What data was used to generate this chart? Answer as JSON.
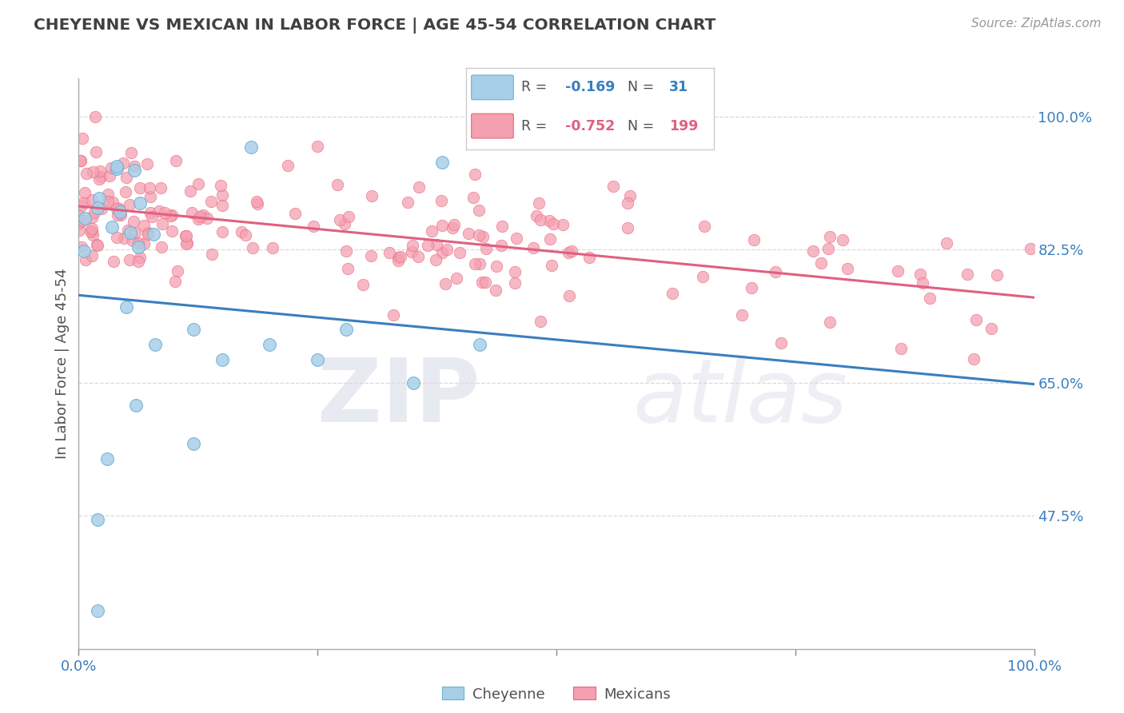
{
  "title": "CHEYENNE VS MEXICAN IN LABOR FORCE | AGE 45-54 CORRELATION CHART",
  "source_text": "Source: ZipAtlas.com",
  "ylabel": "In Labor Force | Age 45-54",
  "watermark_zip": "ZIP",
  "watermark_atlas": "atlas",
  "cheyenne_color": "#a8cfe8",
  "cheyenne_edge_color": "#6baed6",
  "mexican_color": "#f4a0b0",
  "mexican_edge_color": "#e8657a",
  "cheyenne_line_color": "#3a7ebf",
  "mexican_line_color": "#e06080",
  "R_cheyenne": -0.169,
  "N_cheyenne": 31,
  "R_mexican": -0.752,
  "N_mexican": 199,
  "xlim": [
    0.0,
    1.0
  ],
  "ylim": [
    0.3,
    1.05
  ],
  "yticks": [
    0.475,
    0.65,
    0.825,
    1.0
  ],
  "ytick_labels": [
    "47.5%",
    "65.0%",
    "82.5%",
    "100.0%"
  ],
  "xtick_labels": [
    "0.0%",
    "",
    "",
    "",
    "100.0%"
  ],
  "background_color": "#ffffff",
  "grid_color": "#d0d0d0",
  "title_color": "#404040",
  "axis_label_color": "#505050",
  "tick_label_color": "#3a7ebf",
  "legend_box_color": "#e8e8f0",
  "cheyenne_line_start": 0.765,
  "cheyenne_line_end": 0.648,
  "mexican_line_start": 0.882,
  "mexican_line_end": 0.762
}
